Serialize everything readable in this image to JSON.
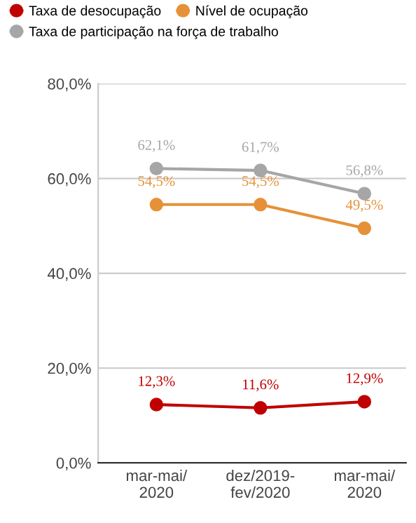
{
  "chart_data": {
    "type": "line",
    "categories": [
      "mar-mai/\n2020",
      "dez/2019-\nfev/2020",
      "mar-mai/\n2020"
    ],
    "series": [
      {
        "name": "Taxa de desocupação",
        "color": "#c00000",
        "values": [
          12.3,
          11.6,
          12.9
        ],
        "value_labels": [
          "12,3%",
          "11,6%",
          "12,9%"
        ]
      },
      {
        "name": "Nível de ocupação",
        "color": "#e69138",
        "values": [
          54.5,
          54.5,
          49.5
        ],
        "value_labels": [
          "54,5%",
          "54,5%",
          "49,5%"
        ]
      },
      {
        "name": "Taxa de participação na força de trabalho",
        "color": "#a6a6a6",
        "values": [
          62.1,
          61.7,
          56.8
        ],
        "value_labels": [
          "62,1%",
          "61,7%",
          "56,8%"
        ]
      }
    ],
    "ylim": [
      0,
      80
    ],
    "yticks": [
      {
        "value": 0,
        "label": "0,0%"
      },
      {
        "value": 20,
        "label": "20,0%"
      },
      {
        "value": 40,
        "label": "40,0%"
      },
      {
        "value": 60,
        "label": "60,0%"
      },
      {
        "value": 80,
        "label": "80,0%"
      }
    ],
    "grid": "y",
    "legend": "top",
    "marker": "circle",
    "line_style": "solid"
  }
}
